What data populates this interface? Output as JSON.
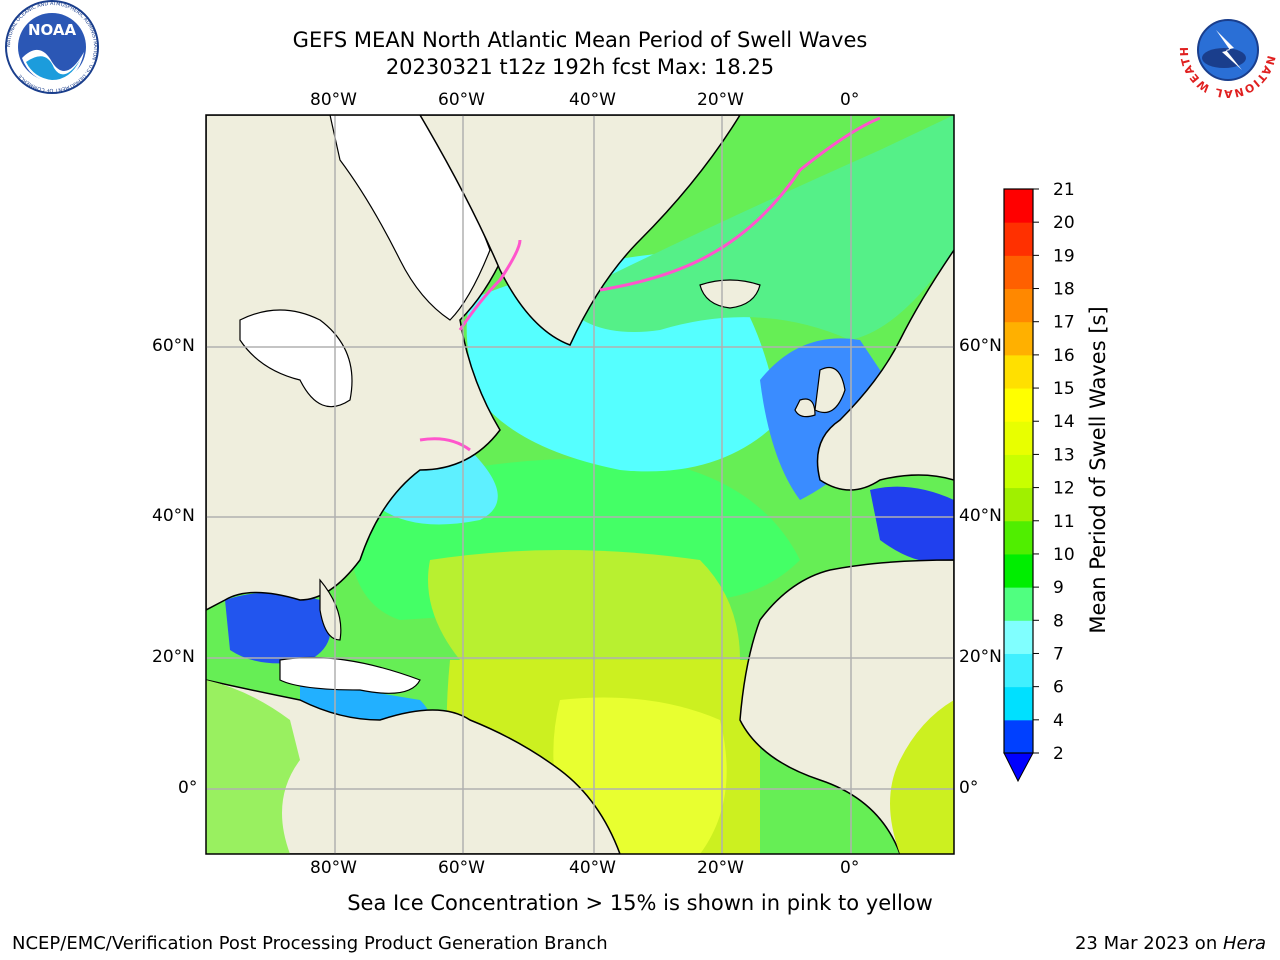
{
  "header": {
    "title_line1": "GEFS MEAN North Atlantic Mean Period of Swell Waves",
    "title_line2": "20230321 t12z 192h fcst   Max: 18.25"
  },
  "logos": {
    "left_text": "NOAA",
    "left_ring_text": "NATIONAL OCEANIC AND ATMOSPHERIC ADMINISTRATION · U.S. DEPARTMENT OF COMMERCE",
    "right_ring_text": "NATIONAL WEATHER SERVICE"
  },
  "map": {
    "lon_labels": [
      "80°W",
      "60°W",
      "40°W",
      "20°W",
      "0°"
    ],
    "lat_labels": [
      "60°N",
      "40°N",
      "20°N",
      "0°"
    ],
    "colors": {
      "land": "#efeedd",
      "ice_free_land": "#ffffff",
      "grid": "#b0b0b0",
      "coast": "#000000",
      "ice": "#ff66cc"
    }
  },
  "colorbar": {
    "label": "Mean Period of Swell Waves [s]",
    "ticks": [
      "2",
      "4",
      "6",
      "7",
      "8",
      "9",
      "10",
      "11",
      "12",
      "13",
      "14",
      "15",
      "16",
      "17",
      "18",
      "19",
      "20",
      "21"
    ],
    "colors": [
      "#0040ff",
      "#00e0ff",
      "#40f0ff",
      "#80ffff",
      "#50ff80",
      "#00ee00",
      "#50ee00",
      "#a0f000",
      "#c8ff00",
      "#e8ff00",
      "#ffff00",
      "#ffe000",
      "#ffb000",
      "#ff8800",
      "#ff6000",
      "#ff3000",
      "#ff0000"
    ],
    "under_color": "#0000ff"
  },
  "caption": "Sea Ice Concentration > 15% is shown in pink to yellow",
  "footer": {
    "left": "NCEP/EMC/Verification Post Processing Product Generation Branch",
    "date": "23 Mar 2023 on ",
    "machine": "Hera"
  }
}
